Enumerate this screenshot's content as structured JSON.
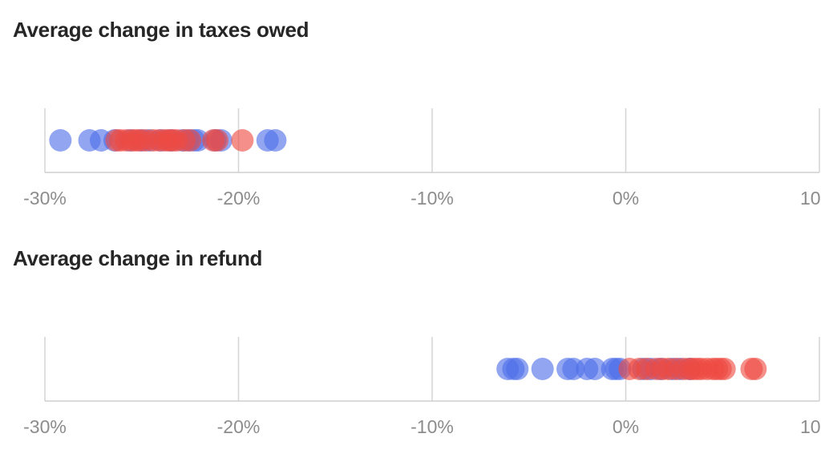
{
  "chart_data": [
    {
      "type": "scatter",
      "title": "Average change in taxes owed",
      "xlabel": "",
      "ylabel": "",
      "xlim": [
        -30,
        10
      ],
      "x_ticks": [
        -30,
        -20,
        -10,
        0,
        10
      ],
      "x_tick_labels": [
        "-30%",
        "-20%",
        "-10%",
        "0%",
        "10"
      ],
      "grid": true,
      "series": [
        {
          "color": "#4d6ee8",
          "values": [
            -29.2,
            -27.7,
            -27.1,
            -26.4,
            -25.6,
            -25.0,
            -24.6,
            -24.0,
            -23.5,
            -22.9,
            -22.6,
            -22.3,
            -22.1,
            -21.2,
            -20.9,
            -18.5,
            -18.1
          ]
        },
        {
          "color": "#ee4a42",
          "values": [
            -26.3,
            -26.1,
            -25.8,
            -25.5,
            -25.3,
            -25.1,
            -24.8,
            -24.4,
            -24.1,
            -23.8,
            -23.6,
            -23.4,
            -23.2,
            -22.8,
            -22.5,
            -21.3,
            -21.1,
            -19.8
          ]
        }
      ]
    },
    {
      "type": "scatter",
      "title": "Average change in refund",
      "xlabel": "",
      "ylabel": "",
      "xlim": [
        -30,
        10
      ],
      "x_ticks": [
        -30,
        -20,
        -10,
        0,
        10
      ],
      "x_tick_labels": [
        "-30%",
        "-20%",
        "-10%",
        "0%",
        "10"
      ],
      "grid": true,
      "series": [
        {
          "color": "#4d6ee8",
          "values": [
            -6.1,
            -5.8,
            -5.6,
            -4.3,
            -3.0,
            -2.7,
            -2.0,
            -1.6,
            -0.7,
            -0.5,
            -0.3,
            0.9,
            1.3,
            1.8,
            2.4,
            2.8,
            3.3
          ]
        },
        {
          "color": "#ee4a42",
          "values": [
            0.2,
            0.7,
            1.1,
            1.6,
            1.9,
            2.2,
            2.6,
            3.0,
            3.3,
            3.5,
            3.7,
            3.9,
            4.2,
            4.5,
            4.7,
            4.9,
            5.1,
            6.5,
            6.7
          ]
        }
      ]
    }
  ]
}
